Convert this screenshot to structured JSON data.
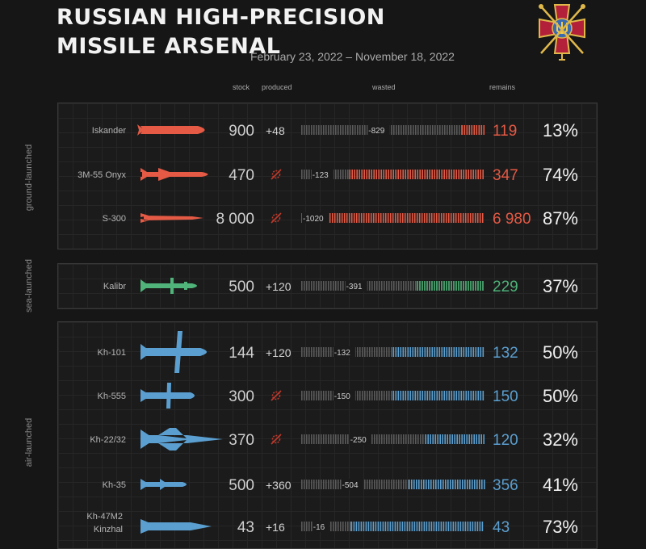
{
  "header": {
    "title_line1": "RUSSIAN HIGH-PRECISION",
    "title_line2": "MISSILE ARSENAL",
    "date_range": "February 23, 2022 – November 18, 2022"
  },
  "columns": {
    "stock": "stock",
    "produced": "produced",
    "wasted": "wasted",
    "remains": "remains"
  },
  "sections": [
    {
      "label": "ground-launched",
      "color": "#e45a45"
    },
    {
      "label": "sea-launched",
      "color": "#4fb37a"
    },
    {
      "label": "air-launched",
      "color": "#5b9fd0"
    }
  ],
  "chart_data": {
    "type": "bar",
    "stacked": true,
    "date_range": "February 23, 2022 – November 18, 2022",
    "rows": [
      {
        "name": "Iskander",
        "group": "ground-launched",
        "stock": "900",
        "produced": "+48",
        "wasted": "-829",
        "remains": "119",
        "percent": "13%",
        "wasted_value": 829,
        "remains_value": 119,
        "shape": "iskander"
      },
      {
        "name": "3M-55 Onyx",
        "group": "ground-launched",
        "stock": "470",
        "produced": "",
        "wasted": "-123",
        "remains": "347",
        "percent": "74%",
        "wasted_value": 123,
        "remains_value": 347,
        "shape": "onyx"
      },
      {
        "name": "S-300",
        "group": "ground-launched",
        "stock": "8 000",
        "produced": "",
        "wasted": "-1020",
        "remains": "6 980",
        "percent": "87%",
        "wasted_value": 1020,
        "remains_value": 6980,
        "shape": "s300"
      },
      {
        "name": "Kalibr",
        "group": "sea-launched",
        "stock": "500",
        "produced": "+120",
        "wasted": "-391",
        "remains": "229",
        "percent": "37%",
        "wasted_value": 391,
        "remains_value": 229,
        "shape": "kalibr"
      },
      {
        "name": "Kh-101",
        "group": "air-launched",
        "stock": "144",
        "produced": "+120",
        "wasted": "-132",
        "remains": "132",
        "percent": "50%",
        "wasted_value": 132,
        "remains_value": 132,
        "shape": "kh101"
      },
      {
        "name": "Kh-555",
        "group": "air-launched",
        "stock": "300",
        "produced": "",
        "wasted": "-150",
        "remains": "150",
        "percent": "50%",
        "wasted_value": 150,
        "remains_value": 150,
        "shape": "kh555"
      },
      {
        "name": "Kh-22/32",
        "group": "air-launched",
        "stock": "370",
        "produced": "",
        "wasted": "-250",
        "remains": "120",
        "percent": "32%",
        "wasted_value": 250,
        "remains_value": 120,
        "shape": "kh22"
      },
      {
        "name": "Kh-35",
        "group": "air-launched",
        "stock": "500",
        "produced": "+360",
        "wasted": "-504",
        "remains": "356",
        "percent": "41%",
        "wasted_value": 504,
        "remains_value": 356,
        "shape": "kh35"
      },
      {
        "name": "Kh-47M2\nKinzhal",
        "group": "air-launched",
        "stock": "43",
        "produced": "+16",
        "wasted": "-16",
        "remains": "43",
        "percent": "73%",
        "wasted_value": 16,
        "remains_value": 43,
        "shape": "kinzhal"
      }
    ],
    "wasted_color": "#5a5a5a",
    "produced_unknown_icon": "crossed-gear-icon"
  }
}
